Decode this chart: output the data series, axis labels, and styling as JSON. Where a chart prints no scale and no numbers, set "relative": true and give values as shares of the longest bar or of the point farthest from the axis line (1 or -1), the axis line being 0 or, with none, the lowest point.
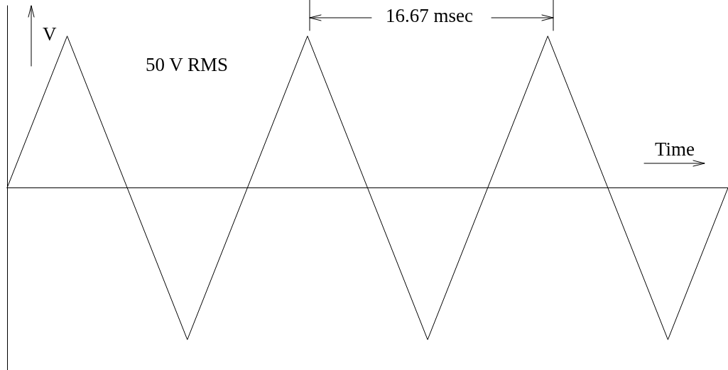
{
  "chart_data": {
    "type": "line",
    "relative": true,
    "xlabel": "Time",
    "ylabel": "V",
    "annotations": [
      "50 V RMS",
      "16.67 msec"
    ],
    "categories": [
      null,
      null,
      null,
      null,
      null,
      null,
      null,
      null,
      null,
      null,
      null,
      null,
      null
    ],
    "values": [
      0,
      1,
      0,
      -1,
      0,
      1,
      0,
      -1,
      0,
      1,
      0,
      -1,
      0
    ],
    "color": "#000000",
    "tick_labels": false,
    "marker": "none",
    "line_style": "solid"
  }
}
